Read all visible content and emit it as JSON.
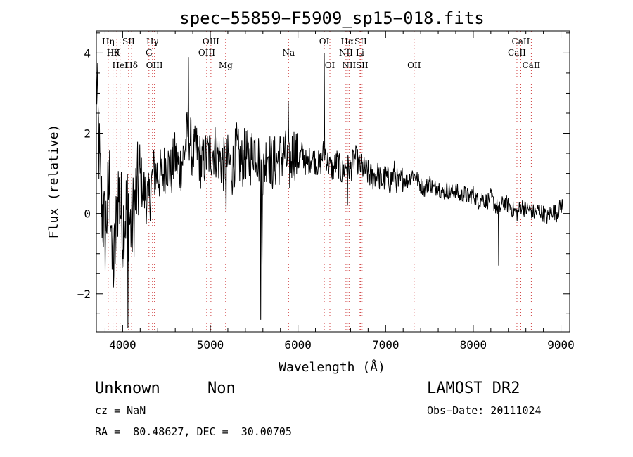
{
  "chart_data": {
    "type": "line",
    "title": "spec−55859−F5909_sp15−018.fits",
    "xlabel": "Wavelength (Å)",
    "ylabel": "Flux (relative)",
    "xlim": [
      3700,
      9100
    ],
    "ylim": [
      -2.95,
      4.55
    ],
    "x_ticks": [
      4000,
      5000,
      6000,
      7000,
      8000,
      9000
    ],
    "y_ticks": [
      -2,
      0,
      2,
      4
    ],
    "grid": false,
    "line_color": "#000000",
    "series": [
      {
        "x": [
          3700,
          3750,
          3800,
          3850,
          3900,
          3950,
          4000,
          4050,
          4100,
          4150,
          4200,
          4250,
          4300,
          4350,
          4400,
          4450,
          4500,
          4550,
          4600,
          4650,
          4700,
          4750,
          4800,
          4850,
          4900,
          4950,
          5000,
          5050,
          5100,
          5150,
          5200,
          5250,
          5300,
          5350,
          5400,
          5450,
          5500,
          5550,
          5600,
          5650,
          5700,
          5750,
          5800,
          5850,
          5900,
          5950,
          6000,
          6050,
          6100,
          6150,
          6200,
          6250,
          6300,
          6350,
          6400,
          6450,
          6500,
          6550,
          6600,
          6650,
          6700,
          6750,
          6800,
          6850,
          6900,
          6950,
          7000,
          7050,
          7100,
          7150,
          7200,
          7250,
          7300,
          7350,
          7400,
          7450,
          7500,
          7550,
          7600,
          7650,
          7700,
          7750,
          7800,
          7850,
          7900,
          7950,
          8000,
          8050,
          8100,
          8150,
          8200,
          8250,
          8300,
          8350,
          8400,
          8450,
          8500,
          8550,
          8600,
          8650,
          8700,
          8750,
          8800,
          8850,
          8900,
          8950,
          9000
        ],
        "y": [
          3.5,
          0.4,
          -0.5,
          0.8,
          -1.4,
          0.6,
          -0.3,
          0.2,
          -0.4,
          0.4,
          0.9,
          0.5,
          0.3,
          1.0,
          1.0,
          0.9,
          1.3,
          1.0,
          1.4,
          1.1,
          1.5,
          2.1,
          1.4,
          1.6,
          1.2,
          1.4,
          1.5,
          1.6,
          1.4,
          1.2,
          1.3,
          1.1,
          1.6,
          1.2,
          1.5,
          1.3,
          1.7,
          1.4,
          0.9,
          1.6,
          1.2,
          1.3,
          1.4,
          1.5,
          1.1,
          1.6,
          1.3,
          1.5,
          1.2,
          1.4,
          1.3,
          1.2,
          1.6,
          1.2,
          1.1,
          1.3,
          1.0,
          1.2,
          1.1,
          1.4,
          1.2,
          1.1,
          1.0,
          0.9,
          1.0,
          0.8,
          0.9,
          0.8,
          1.0,
          0.7,
          0.9,
          0.8,
          1.0,
          0.9,
          0.7,
          0.6,
          0.8,
          0.6,
          0.7,
          0.5,
          0.6,
          0.5,
          0.6,
          0.4,
          0.5,
          0.4,
          0.5,
          0.3,
          0.4,
          0.3,
          0.4,
          0.2,
          0.1,
          0.3,
          0.2,
          0.1,
          0.0,
          0.2,
          0.1,
          0.1,
          0.0,
          0.1,
          0.0,
          -0.1,
          0.1,
          0.0,
          0.2
        ],
        "spikes": [
          {
            "x": 4060,
            "y": -2.85
          },
          {
            "x": 3880,
            "y": -1.4
          },
          {
            "x": 4750,
            "y": 3.9
          },
          {
            "x": 5180,
            "y": 0.0
          },
          {
            "x": 5577,
            "y": -2.65
          },
          {
            "x": 5590,
            "y": -1.3
          },
          {
            "x": 5890,
            "y": 2.8
          },
          {
            "x": 6300,
            "y": 4.0
          },
          {
            "x": 6563,
            "y": 0.2
          },
          {
            "x": 8290,
            "y": -1.3
          }
        ]
      }
    ],
    "lines": [
      {
        "x": 3835,
        "label": "Hη",
        "row": 0
      },
      {
        "x": 3889,
        "label": "Hθ",
        "row": 1
      },
      {
        "x": 3934,
        "label": "K",
        "row": 1
      },
      {
        "x": 3970,
        "label": "HeI",
        "row": 2
      },
      {
        "x": 4068,
        "label": "SII",
        "row": 0
      },
      {
        "x": 4102,
        "label": "Hδ",
        "row": 2
      },
      {
        "x": 4300,
        "label": "G",
        "row": 1
      },
      {
        "x": 4340,
        "label": "Hγ",
        "row": 0
      },
      {
        "x": 4363,
        "label": "OIII",
        "row": 2
      },
      {
        "x": 4959,
        "label": "OIII",
        "row": 1
      },
      {
        "x": 5007,
        "label": "OIII",
        "row": 0
      },
      {
        "x": 5175,
        "label": "Mg",
        "row": 2
      },
      {
        "x": 5893,
        "label": "Na",
        "row": 1
      },
      {
        "x": 6300,
        "label": "OI",
        "row": 0
      },
      {
        "x": 6364,
        "label": "OI",
        "row": 2
      },
      {
        "x": 6548,
        "label": "NII",
        "row": 1
      },
      {
        "x": 6563,
        "label": "Hα",
        "row": 0
      },
      {
        "x": 6583,
        "label": "NII",
        "row": 2
      },
      {
        "x": 6708,
        "label": "Li",
        "row": 1
      },
      {
        "x": 6716,
        "label": "SII",
        "row": 0
      },
      {
        "x": 6731,
        "label": "SII",
        "row": 2
      },
      {
        "x": 7325,
        "label": "OII",
        "row": 2
      },
      {
        "x": 8498,
        "label": "CaII",
        "row": 1
      },
      {
        "x": 8542,
        "label": "CaII",
        "row": 0
      },
      {
        "x": 8662,
        "label": "CaII",
        "row": 2
      }
    ]
  },
  "info": {
    "class_name": "Unknown",
    "subclass": "Non",
    "survey": "LAMOST DR2",
    "cz": "cz = NaN",
    "obs_date": "Obs−Date: 20111024",
    "coords": "RA =  80.48627, DEC =  30.00705"
  }
}
